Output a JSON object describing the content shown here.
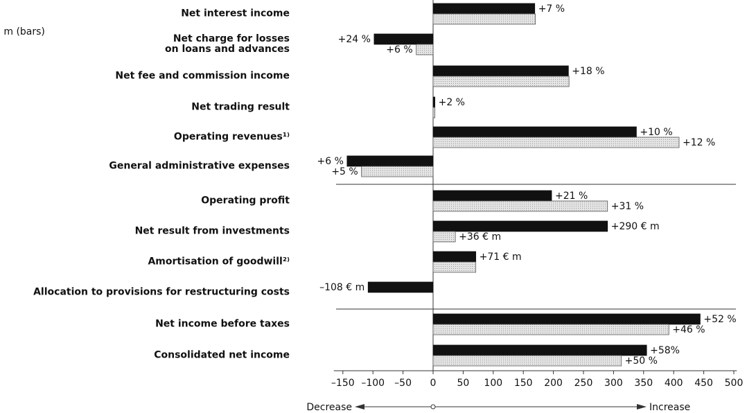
{
  "chart_data": {
    "type": "bar",
    "orientation": "horizontal",
    "unit_label": "€ m (bars)",
    "categories": [
      "Net interest income",
      "Net charge for losses\non loans and advances",
      "Net fee and commission income",
      "Net trading result",
      "Operating revenues¹⁾",
      "General administrative expenses",
      "Operating profit",
      "Net result from investments",
      "Amortisation of goodwill²⁾",
      "Allocation to provisions for restructuring costs",
      "Net income before taxes",
      "Consolidated net income"
    ],
    "series": [
      {
        "color": "#111111",
        "values": [
          169,
          -98,
          225,
          3,
          338,
          -143,
          197,
          290,
          71,
          -108,
          444,
          355
        ],
        "change_labels": [
          "+7 %",
          "+24 %",
          "+18 %",
          "+2 %",
          "+10 %",
          "+6 %",
          "+21 %",
          "+290 € m",
          "+71 € m",
          "–108 € m",
          "+52 %",
          "+58%"
        ]
      },
      {
        "color": "#dcdcdc",
        "values": [
          170,
          -28,
          226,
          3,
          409,
          -119,
          290,
          37,
          71,
          null,
          392,
          313
        ],
        "change_labels": [
          null,
          "+6 %",
          null,
          null,
          "+12 %",
          "+5 %",
          "+31 %",
          "+36 € m",
          null,
          null,
          "+46 %",
          "+50 %"
        ]
      }
    ],
    "xlim": [
      -165,
      505
    ],
    "xticks": [
      {
        "value": -150,
        "label": "–150"
      },
      {
        "value": -100,
        "label": "–100"
      },
      {
        "value": -50,
        "label": "–50"
      },
      0,
      50,
      100,
      150,
      200,
      250,
      300,
      350,
      400,
      450,
      500
    ],
    "direction_labels": [
      "Decrease",
      "Increase"
    ]
  }
}
